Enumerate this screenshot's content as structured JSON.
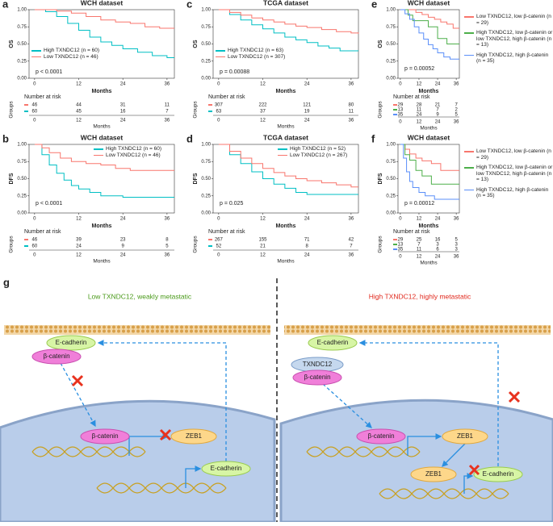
{
  "chart_data": [
    {
      "type": "line",
      "label": "a",
      "title": "WCH dataset",
      "ylabel": "OS",
      "xlabel": "Months",
      "legend": "lower left",
      "annotation": "p < 0.0001",
      "xlim": [
        -1.5,
        38
      ],
      "xticks": [
        0,
        12,
        24,
        36
      ],
      "ylim": [
        0,
        1
      ],
      "yticks": [
        {
          "value": 0,
          "label": "0.00"
        },
        {
          "value": 0.25,
          "label": "0.25"
        },
        {
          "value": 0.5,
          "label": "0.50"
        },
        {
          "value": 0.75,
          "label": "0.75"
        },
        {
          "value": 1,
          "label": "1.00"
        }
      ],
      "series": [
        {
          "name": "High TXNDC12 (n = 60)",
          "color": "#00bfc4",
          "x": [
            0,
            3,
            6,
            9,
            12,
            15,
            18,
            21,
            24,
            28,
            32,
            36,
            38
          ],
          "values": [
            1,
            0.97,
            0.9,
            0.8,
            0.7,
            0.6,
            0.53,
            0.48,
            0.43,
            0.38,
            0.33,
            0.3,
            0.3
          ]
        },
        {
          "name": "Low TXNDC12 (n = 46)",
          "color": "#f8766d",
          "x": [
            0,
            3,
            6,
            10,
            14,
            18,
            22,
            26,
            30,
            34,
            38
          ],
          "values": [
            1,
            1,
            0.98,
            0.95,
            0.9,
            0.85,
            0.82,
            0.8,
            0.75,
            0.73,
            0.73
          ]
        }
      ],
      "risk_table": {
        "title": "Number at risk",
        "ylabel": "Groups",
        "xlabel": "Months",
        "rows": [
          {
            "color": "#f8766d",
            "counts": [
              "46",
              "44",
              "31",
              "11"
            ]
          },
          {
            "color": "#00bfc4",
            "counts": [
              "60",
              "45",
              "16",
              "7"
            ]
          }
        ]
      }
    },
    {
      "type": "line",
      "label": "c",
      "title": "TCGA dataset",
      "ylabel": "OS",
      "xlabel": "Months",
      "legend": "lower left",
      "annotation": "p = 0.00088",
      "xlim": [
        -1.5,
        38
      ],
      "xticks": [
        0,
        12,
        24,
        36
      ],
      "ylim": [
        0,
        1
      ],
      "yticks": [
        {
          "value": 0,
          "label": "0.00"
        },
        {
          "value": 0.25,
          "label": "0.25"
        },
        {
          "value": 0.5,
          "label": "0.50"
        },
        {
          "value": 0.75,
          "label": "0.75"
        },
        {
          "value": 1,
          "label": "1.00"
        }
      ],
      "series": [
        {
          "name": "High TXNDC12 (n = 63)",
          "color": "#00bfc4",
          "x": [
            0,
            3,
            6,
            9,
            12,
            15,
            18,
            21,
            24,
            27,
            30,
            33,
            38
          ],
          "values": [
            1,
            0.93,
            0.85,
            0.78,
            0.72,
            0.66,
            0.6,
            0.56,
            0.52,
            0.47,
            0.44,
            0.4,
            0.4
          ]
        },
        {
          "name": "Low TXNDC12 (n = 307)",
          "color": "#f8766d",
          "x": [
            0,
            3,
            6,
            9,
            12,
            15,
            18,
            21,
            24,
            28,
            32,
            36,
            38
          ],
          "values": [
            1,
            0.96,
            0.92,
            0.88,
            0.85,
            0.82,
            0.79,
            0.76,
            0.74,
            0.71,
            0.68,
            0.66,
            0.65
          ]
        }
      ],
      "risk_table": {
        "title": "Number at risk",
        "ylabel": "Groups",
        "xlabel": "Months",
        "rows": [
          {
            "color": "#f8766d",
            "counts": [
              "307",
              "222",
              "121",
              "80"
            ]
          },
          {
            "color": "#00bfc4",
            "counts": [
              "63",
              "37",
              "19",
              "11"
            ]
          }
        ]
      }
    },
    {
      "type": "line",
      "label": "e",
      "title": "WCH dataset",
      "ylabel": "OS",
      "xlabel": "Months",
      "legend": "right",
      "annotation": "p = 0.00052",
      "xlim": [
        -1.5,
        38
      ],
      "xticks": [
        0,
        12,
        24,
        36
      ],
      "ylim": [
        0,
        1
      ],
      "yticks": [
        {
          "value": 0,
          "label": "0.00"
        },
        {
          "value": 0.25,
          "label": "0.25"
        },
        {
          "value": 0.5,
          "label": "0.50"
        },
        {
          "value": 0.75,
          "label": "0.75"
        },
        {
          "value": 1,
          "label": "1.00"
        }
      ],
      "series": [
        {
          "name": "Low TXNDC12, low β-catenin (n = 29)",
          "color": "#f8766d",
          "x": [
            0,
            6,
            10,
            14,
            18,
            22,
            26,
            30,
            34,
            38
          ],
          "values": [
            1,
            1,
            0.96,
            0.93,
            0.89,
            0.86,
            0.82,
            0.79,
            0.73,
            0.73
          ]
        },
        {
          "name": "High TXNDC12, low β-catenin or low TXNDC12, high β-catenin (n = 13)",
          "color": "#4daf4a",
          "x": [
            0,
            5,
            8,
            12,
            18,
            24,
            30,
            38
          ],
          "values": [
            1,
            0.92,
            0.84,
            0.84,
            0.75,
            0.58,
            0.5,
            0.5
          ]
        },
        {
          "name": "High TXNDC12, high β-catenin (n = 35)",
          "color": "#5b8ff9",
          "x": [
            0,
            3,
            6,
            9,
            12,
            15,
            18,
            21,
            24,
            28,
            32,
            38
          ],
          "values": [
            1,
            0.94,
            0.86,
            0.75,
            0.66,
            0.57,
            0.49,
            0.43,
            0.37,
            0.31,
            0.28,
            0.28
          ]
        }
      ],
      "risk_table": {
        "title": "Number at risk",
        "ylabel": "Groups",
        "xlabel": "Months",
        "rows": [
          {
            "color": "#f8766d",
            "counts": [
              "29",
              "28",
              "21",
              "7"
            ]
          },
          {
            "color": "#4daf4a",
            "counts": [
              "13",
              "11",
              "7",
              "2"
            ]
          },
          {
            "color": "#5b8ff9",
            "counts": [
              "35",
              "24",
              "9",
              "5"
            ]
          }
        ]
      }
    },
    {
      "type": "line",
      "label": "b",
      "title": "WCH dataset",
      "ylabel": "DFS",
      "xlabel": "Months",
      "legend": "upper right",
      "annotation": "p < 0.0001",
      "xlim": [
        -1.5,
        38
      ],
      "xticks": [
        0,
        12,
        24,
        36
      ],
      "ylim": [
        0,
        1
      ],
      "yticks": [
        {
          "value": 0,
          "label": "0.00"
        },
        {
          "value": 0.25,
          "label": "0.25"
        },
        {
          "value": 0.5,
          "label": "0.50"
        },
        {
          "value": 0.75,
          "label": "0.75"
        },
        {
          "value": 1,
          "label": "1.00"
        }
      ],
      "series": [
        {
          "name": "High TXNDC12 (n = 60)",
          "color": "#00bfc4",
          "x": [
            0,
            2,
            4,
            6,
            8,
            10,
            12,
            15,
            18,
            24,
            30,
            38
          ],
          "values": [
            1,
            0.85,
            0.7,
            0.58,
            0.48,
            0.4,
            0.35,
            0.3,
            0.25,
            0.23,
            0.23,
            0.23
          ]
        },
        {
          "name": "Low TXNDC12 (n = 46)",
          "color": "#f8766d",
          "x": [
            0,
            2,
            4,
            7,
            10,
            14,
            18,
            22,
            26,
            38
          ],
          "values": [
            1,
            0.95,
            0.88,
            0.8,
            0.75,
            0.72,
            0.7,
            0.65,
            0.62,
            0.62
          ]
        }
      ],
      "risk_table": {
        "title": "Number at risk",
        "ylabel": "Groups",
        "xlabel": "Months",
        "rows": [
          {
            "color": "#f8766d",
            "counts": [
              "46",
              "39",
              "23",
              "8"
            ]
          },
          {
            "color": "#00bfc4",
            "counts": [
              "60",
              "24",
              "9",
              "5"
            ]
          }
        ]
      }
    },
    {
      "type": "line",
      "label": "d",
      "title": "TCGA dataset",
      "ylabel": "DFS",
      "xlabel": "Months",
      "legend": "upper right",
      "annotation": "p = 0.025",
      "xlim": [
        -1.5,
        38
      ],
      "xticks": [
        0,
        12,
        24,
        36
      ],
      "ylim": [
        0,
        1
      ],
      "yticks": [
        {
          "value": 0,
          "label": "0.00"
        },
        {
          "value": 0.25,
          "label": "0.25"
        },
        {
          "value": 0.5,
          "label": "0.50"
        },
        {
          "value": 0.75,
          "label": "0.75"
        },
        {
          "value": 1,
          "label": "1.00"
        }
      ],
      "series": [
        {
          "name": "High TXNDC12 (n = 52)",
          "color": "#00bfc4",
          "x": [
            0,
            3,
            6,
            9,
            12,
            15,
            18,
            21,
            24,
            30,
            38
          ],
          "values": [
            1,
            0.85,
            0.72,
            0.6,
            0.5,
            0.42,
            0.36,
            0.3,
            0.27,
            0.27,
            0.27
          ]
        },
        {
          "name": "Low TXNDC12 (n = 267)",
          "color": "#f8766d",
          "x": [
            0,
            3,
            6,
            9,
            12,
            15,
            18,
            21,
            24,
            28,
            32,
            36,
            38
          ],
          "values": [
            1,
            0.9,
            0.8,
            0.72,
            0.65,
            0.59,
            0.54,
            0.5,
            0.47,
            0.44,
            0.41,
            0.38,
            0.38
          ]
        }
      ],
      "risk_table": {
        "title": "Number at risk",
        "ylabel": "Groups",
        "xlabel": "Months",
        "rows": [
          {
            "color": "#f8766d",
            "counts": [
              "267",
              "155",
              "71",
              "42"
            ]
          },
          {
            "color": "#00bfc4",
            "counts": [
              "52",
              "21",
              "8",
              "7"
            ]
          }
        ]
      }
    },
    {
      "type": "line",
      "label": "f",
      "title": "WCH dataset",
      "ylabel": "DFS",
      "xlabel": "Months",
      "legend": "right",
      "annotation": "p = 0.00012",
      "xlim": [
        -1.5,
        38
      ],
      "xticks": [
        0,
        12,
        24,
        36
      ],
      "ylim": [
        0,
        1
      ],
      "yticks": [
        {
          "value": 0,
          "label": "0.00"
        },
        {
          "value": 0.25,
          "label": "0.25"
        },
        {
          "value": 0.5,
          "label": "0.50"
        },
        {
          "value": 0.75,
          "label": "0.75"
        },
        {
          "value": 1,
          "label": "1.00"
        }
      ],
      "series": [
        {
          "name": "Low TXNDC12, low β-catenin (n = 29)",
          "color": "#f8766d",
          "x": [
            0,
            3,
            6,
            10,
            14,
            20,
            26,
            38
          ],
          "values": [
            1,
            0.93,
            0.86,
            0.8,
            0.76,
            0.72,
            0.62,
            0.62
          ]
        },
        {
          "name": "High TXNDC12, low β-catenin or low TXNDC12, high β-catenin (n = 13)",
          "color": "#4daf4a",
          "x": [
            0,
            3,
            6,
            10,
            14,
            20,
            38
          ],
          "values": [
            1,
            0.85,
            0.77,
            0.62,
            0.54,
            0.42,
            0.42
          ]
        },
        {
          "name": "High TXNDC12, high β-catenin (n = 35)",
          "color": "#5b8ff9",
          "x": [
            0,
            2,
            4,
            6,
            8,
            12,
            16,
            22,
            38
          ],
          "values": [
            1,
            0.8,
            0.6,
            0.46,
            0.37,
            0.3,
            0.25,
            0.2,
            0.2
          ]
        }
      ],
      "risk_table": {
        "title": "Number at risk",
        "ylabel": "Groups",
        "xlabel": "Months",
        "rows": [
          {
            "color": "#f8766d",
            "counts": [
              "29",
              "25",
              "16",
              "5"
            ]
          },
          {
            "color": "#4daf4a",
            "counts": [
              "13",
              "7",
              "3",
              "3"
            ]
          },
          {
            "color": "#5b8ff9",
            "counts": [
              "35",
              "11",
              "6",
              "3"
            ]
          }
        ]
      }
    }
  ],
  "diagram": {
    "label": "g",
    "left": {
      "title": "Low TXNDC12, weakly metastatic",
      "nodes": [
        "E-cadherin",
        "β-catenin",
        "β-catenin",
        "ZEB1",
        "E-cadherin"
      ]
    },
    "right": {
      "title": "High TXNDC12, highly metastatic",
      "nodes": [
        "E-cadherin",
        "TXNDC12",
        "β-catenin",
        "β-catenin",
        "ZEB1",
        "ZEB1",
        "E-cadherin"
      ]
    }
  }
}
